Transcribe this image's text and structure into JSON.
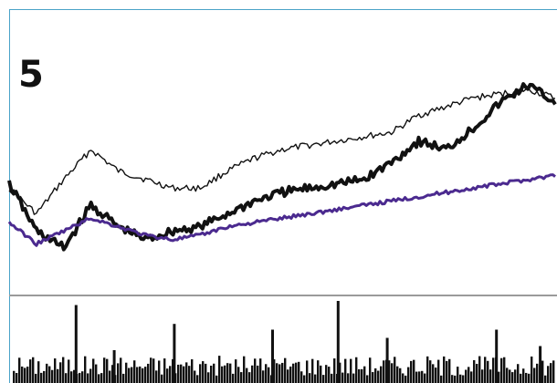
{
  "panel": {
    "number_label": "5"
  },
  "colors": {
    "frame": "#4aa3c8",
    "divider": "#9a9a9a",
    "series_a": "#111111",
    "series_b": "#111111",
    "series_c": "#4b2a8f",
    "volume": "#111111"
  },
  "chart_data": [
    {
      "type": "line",
      "title": "",
      "xlabel": "",
      "ylabel": "",
      "grid": false,
      "legend": "none",
      "x": [
        0,
        5,
        10,
        15,
        20,
        25,
        30,
        35,
        40,
        45,
        50,
        55,
        60,
        65,
        70,
        75,
        80,
        85,
        90,
        95,
        100
      ],
      "ylim": [
        0,
        100
      ],
      "series": [
        {
          "key": "a",
          "values": [
            42,
            30,
            46,
            60,
            50,
            46,
            42,
            42,
            50,
            56,
            60,
            62,
            64,
            66,
            68,
            76,
            80,
            84,
            86,
            88,
            84
          ]
        },
        {
          "key": "b",
          "values": [
            44,
            22,
            14,
            34,
            24,
            18,
            22,
            24,
            30,
            36,
            40,
            42,
            44,
            46,
            54,
            64,
            60,
            70,
            82,
            90,
            82
          ]
        },
        {
          "key": "c",
          "values": [
            26,
            16,
            22,
            28,
            24,
            20,
            18,
            20,
            24,
            26,
            28,
            30,
            32,
            34,
            36,
            38,
            40,
            42,
            44,
            46,
            48
          ]
        }
      ]
    },
    {
      "type": "bar",
      "title": "",
      "xlabel": "",
      "ylabel": "",
      "ylim": [
        0,
        100
      ],
      "spikes": [
        {
          "x": 12,
          "value": 95
        },
        {
          "x": 19,
          "value": 40
        },
        {
          "x": 30,
          "value": 72
        },
        {
          "x": 48,
          "value": 65
        },
        {
          "x": 60,
          "value": 100
        },
        {
          "x": 69,
          "value": 55
        },
        {
          "x": 89,
          "value": 65
        },
        {
          "x": 97,
          "value": 45
        }
      ]
    }
  ]
}
